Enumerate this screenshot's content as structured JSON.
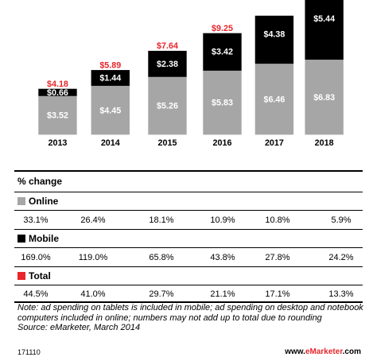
{
  "colors": {
    "online": "#a6a6a6",
    "mobile": "#000000",
    "total": "#e8252b",
    "text": "#000000",
    "label_on_bar": "#ffffff"
  },
  "chart_data": {
    "type": "bar",
    "stacked": true,
    "categories": [
      "2013",
      "2014",
      "2015",
      "2016",
      "2017",
      "2018"
    ],
    "series": [
      {
        "name": "Online",
        "values": [
          3.52,
          4.45,
          5.26,
          5.83,
          6.46,
          6.83
        ],
        "labels": [
          "$3.52",
          "$4.45",
          "$5.26",
          "$5.83",
          "$6.46",
          "$6.83"
        ]
      },
      {
        "name": "Mobile",
        "values": [
          0.66,
          1.44,
          2.38,
          3.42,
          4.38,
          5.44
        ],
        "labels": [
          "$0.66",
          "$1.44",
          "$2.38",
          "$3.42",
          "$4.38",
          "$5.44"
        ]
      }
    ],
    "totals": [
      4.18,
      5.89,
      7.64,
      9.25,
      10.84,
      12.27
    ],
    "total_labels": [
      "$4.18",
      "$5.89",
      "$7.64",
      "$9.25",
      "",
      ""
    ],
    "ylim": [
      0,
      12.27
    ],
    "grid": false
  },
  "table": {
    "title": "% change",
    "rows": [
      {
        "label": "Online",
        "values": [
          "33.1%",
          "26.4%",
          "18.1%",
          "10.9%",
          "10.8%",
          "5.9%"
        ]
      },
      {
        "label": "Mobile",
        "values": [
          "169.0%",
          "119.0%",
          "65.8%",
          "43.8%",
          "27.8%",
          "24.2%"
        ]
      },
      {
        "label": "Total",
        "values": [
          "44.5%",
          "41.0%",
          "29.7%",
          "21.1%",
          "17.1%",
          "13.3%"
        ]
      }
    ]
  },
  "note": "Note: ad spending on tablets is included in mobile; ad spending on desktop and notebook computers included in online; numbers may not add up to total due to rounding",
  "source": "Source: eMarketer, March 2014",
  "footer": {
    "id": "171110",
    "brand_prefix": "www.",
    "brand_name": "eMarketer",
    "brand_suffix": ".com"
  }
}
